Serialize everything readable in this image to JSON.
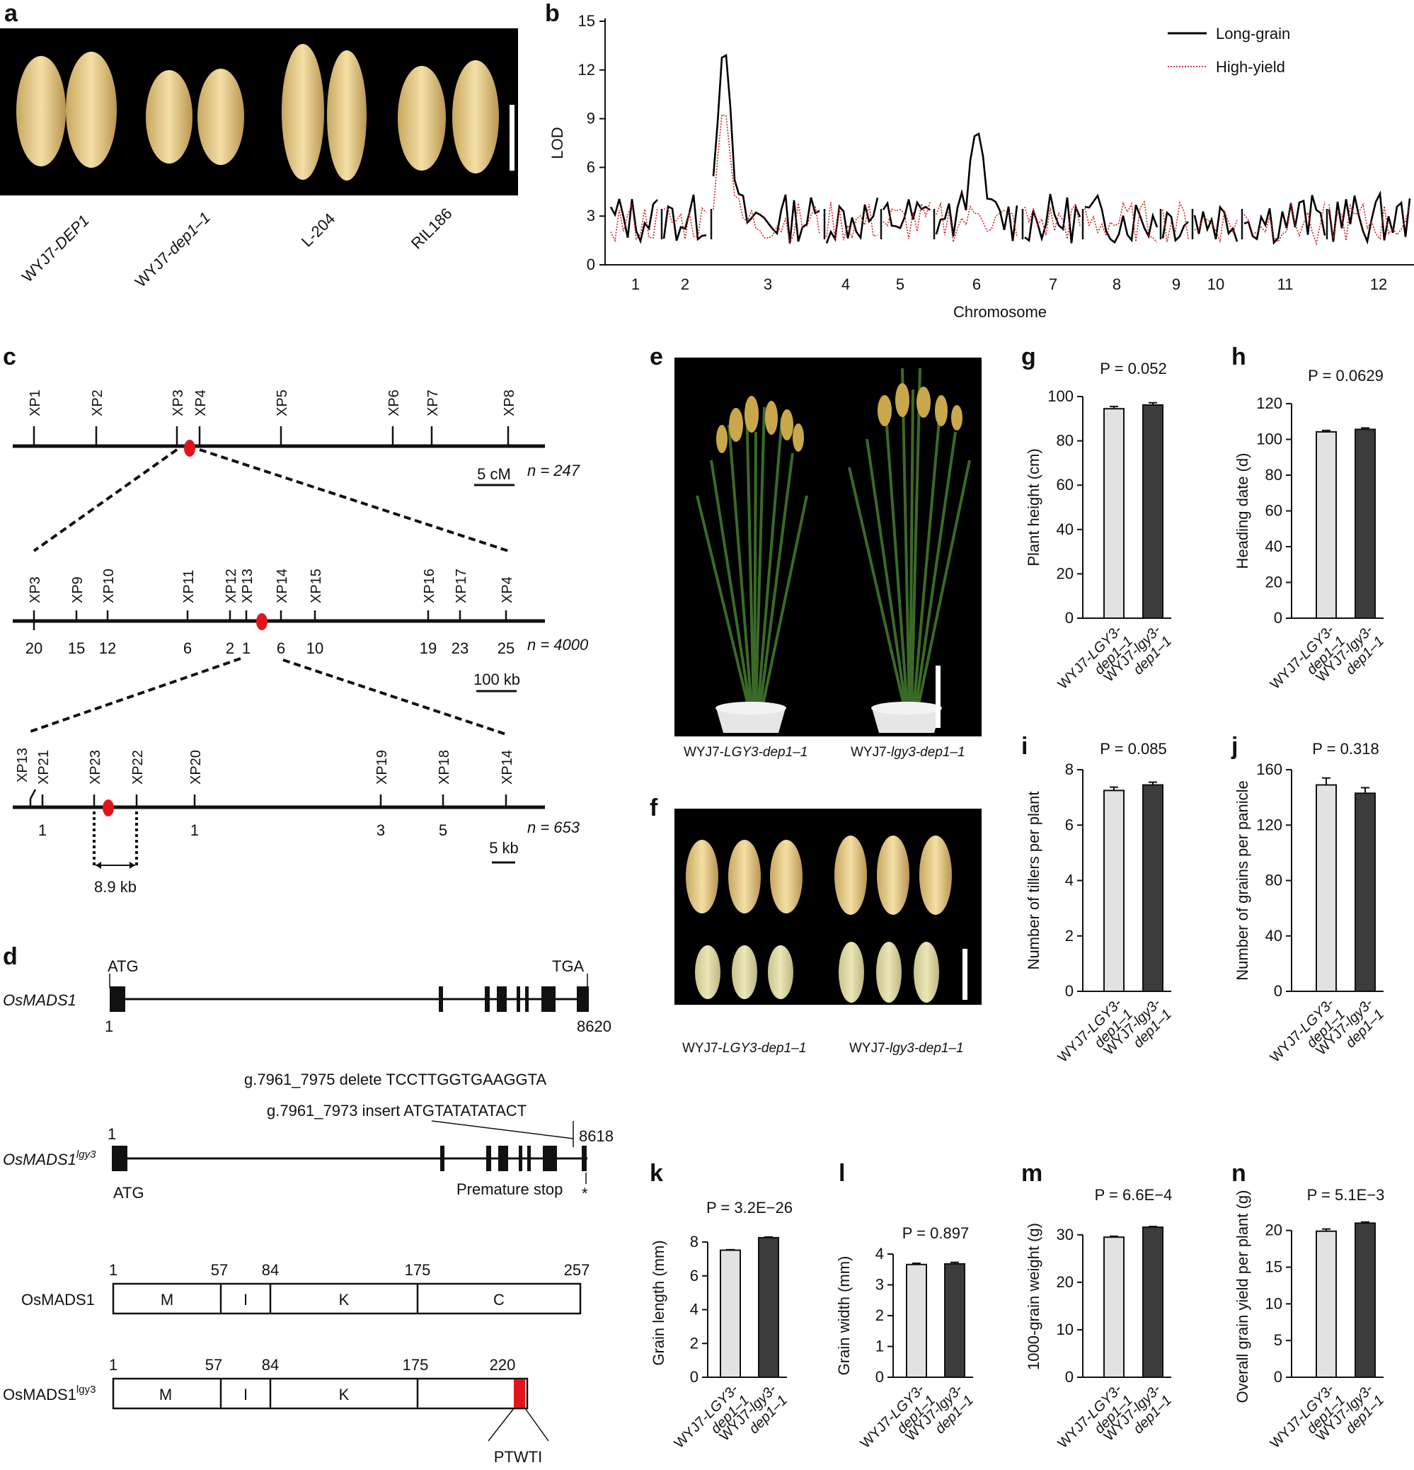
{
  "panel_labels": [
    "a",
    "b",
    "c",
    "d",
    "e",
    "f",
    "g",
    "h",
    "i",
    "j",
    "k",
    "l",
    "m",
    "n"
  ],
  "panel_a": {
    "labels": [
      "WYJ7-DEP1",
      "WYJ7-dep1–1",
      "L-204",
      "RIL186"
    ]
  },
  "chart_data": [
    {
      "id": "b",
      "type": "line",
      "ylabel": "LOD",
      "xlabel": "Chromosome",
      "ylim": [
        0,
        15
      ],
      "yticks": [
        0,
        3,
        6,
        9,
        12,
        15
      ],
      "chromosomes": [
        "1",
        "2",
        "3",
        "4",
        "5",
        "6",
        "7",
        "8",
        "9",
        "10",
        "11",
        "12"
      ],
      "legend_position": "top-right",
      "series": [
        {
          "name": "Long-grain",
          "color": "#000000",
          "style": "solid",
          "peaks": [
            {
              "chromosome": "3",
              "value": 13.4
            },
            {
              "chromosome": "6",
              "value": 8.3
            }
          ],
          "baseline_range": [
            1,
            4.5
          ]
        },
        {
          "name": "High-yield",
          "color": "#cc2222",
          "style": "dotted",
          "peaks": [
            {
              "chromosome": "3",
              "value": 9.6
            },
            {
              "chromosome": "6",
              "value": 3.2
            }
          ],
          "baseline_range": [
            1,
            4
          ]
        }
      ]
    },
    {
      "id": "g",
      "type": "bar",
      "p": "P = 0.052",
      "ylabel": "Plant height (cm)",
      "ylim": [
        0,
        100
      ],
      "yticks": [
        0,
        20,
        40,
        60,
        80,
        100
      ],
      "categories": [
        "WYJ7-LGY3-dep1–1",
        "WYJ7-lgy3-dep1–1"
      ],
      "values": [
        94.5,
        96.2
      ],
      "errors": [
        1.0,
        1.0
      ]
    },
    {
      "id": "h",
      "type": "bar",
      "p": "P = 0.0629",
      "ylabel": "Heading date (d)",
      "ylim": [
        0,
        120
      ],
      "yticks": [
        0,
        20,
        40,
        60,
        80,
        100,
        120
      ],
      "categories": [
        "WYJ7-LGY3-dep1–1",
        "WYJ7-lgy3-dep1–1"
      ],
      "values": [
        104.2,
        105.6
      ],
      "errors": [
        0.8,
        0.8
      ]
    },
    {
      "id": "i",
      "type": "bar",
      "p": "P = 0.085",
      "ylabel": "Number of tillers per plant",
      "ylim": [
        0,
        8
      ],
      "yticks": [
        0,
        2,
        4,
        6,
        8
      ],
      "categories": [
        "WYJ7-LGY3-dep1–1",
        "WYJ7-lgy3-dep1–1"
      ],
      "values": [
        7.25,
        7.45
      ],
      "errors": [
        0.12,
        0.1
      ]
    },
    {
      "id": "j",
      "type": "bar",
      "p": "P = 0.318",
      "ylabel": "Number of grains per panicle",
      "ylim": [
        0,
        160
      ],
      "yticks": [
        0,
        40,
        80,
        120,
        160
      ],
      "categories": [
        "WYJ7-LGY3-dep1–1",
        "WYJ7-lgy3-dep1–1"
      ],
      "values": [
        149,
        143
      ],
      "errors": [
        5,
        4
      ]
    },
    {
      "id": "k",
      "type": "bar",
      "p": "P = 3.2E−26",
      "ylabel": "Grain length (mm)",
      "ylim": [
        0,
        8.8
      ],
      "yticks": [
        0,
        2,
        4,
        6,
        8
      ],
      "categories": [
        "WYJ7-LGY3-dep1–1",
        "WYJ7-lgy3-dep1–1"
      ],
      "values": [
        7.52,
        8.26
      ],
      "errors": [
        0.03,
        0.04
      ]
    },
    {
      "id": "l",
      "type": "bar",
      "p": "P = 0.897",
      "ylabel": "Grain width (mm)",
      "ylim": [
        0,
        4
      ],
      "yticks": [
        0,
        1,
        2,
        3,
        4
      ],
      "categories": [
        "WYJ7-LGY3-dep1–1",
        "WYJ7-lgy3-dep1–1"
      ],
      "values": [
        3.66,
        3.68
      ],
      "errors": [
        0.04,
        0.05
      ]
    },
    {
      "id": "m",
      "type": "bar",
      "p": "P = 6.6E−4",
      "ylabel": "1000-grain weight (g)",
      "ylim": [
        0,
        34
      ],
      "yticks": [
        0,
        10,
        20,
        30
      ],
      "categories": [
        "WYJ7-LGY3-dep1–1",
        "WYJ7-lgy3-dep1–1"
      ],
      "values": [
        29.5,
        31.6
      ],
      "errors": [
        0.2,
        0.15
      ]
    },
    {
      "id": "n",
      "type": "bar",
      "p": "P = 5.1E−3",
      "ylabel": "Overall grain yield per plant (g)",
      "ylim": [
        0,
        22
      ],
      "yticks": [
        0,
        5,
        10,
        15,
        20
      ],
      "categories": [
        "WYJ7-LGY3-dep1–1",
        "WYJ7-lgy3-dep1–1"
      ],
      "values": [
        19.9,
        21.0
      ],
      "errors": [
        0.3,
        0.15
      ]
    }
  ],
  "panel_c": {
    "row1": {
      "markers": [
        "XP1",
        "XP2",
        "XP3",
        "XP4",
        "XP5",
        "XP6",
        "XP7",
        "XP8"
      ],
      "scale": "5 cM",
      "n": "n = 247"
    },
    "row2": {
      "markers": [
        "XP3",
        "XP9",
        "XP10",
        "XP11",
        "XP12",
        "XP13",
        "XP14",
        "XP15",
        "XP16",
        "XP17",
        "XP4"
      ],
      "counts": [
        "20",
        "15",
        "12",
        "6",
        "2",
        "1",
        "6",
        "10",
        "19",
        "23",
        "25"
      ],
      "scale": "100 kb",
      "n": "n = 4000"
    },
    "row3": {
      "markers": [
        "XP13",
        "XP21",
        "XP23",
        "XP22",
        "XP20",
        "XP19",
        "XP18",
        "XP14"
      ],
      "counts": [
        "1",
        "1",
        "3",
        "5"
      ],
      "scale": "5 kb",
      "n": "n = 653",
      "interval": "8.9 kb"
    }
  },
  "panel_d": {
    "gene1": {
      "name": "OsMADS1",
      "start_codon": "ATG",
      "stop_codon": "TGA",
      "start": "1",
      "end": "8620"
    },
    "gene2": {
      "name": "OsMADS1",
      "superscript": "lgy3",
      "start": "1",
      "end": "8618",
      "start_codon": "ATG",
      "deletion": "g.7961_7975 delete",
      "deletion_seq": "TCCTTGGTGAAGGTA",
      "insertion": "g.7961_7973 insert",
      "insertion_seq": "ATGTATATATACT",
      "premature": "Premature stop",
      "star": "*"
    },
    "protein1": {
      "name": "OsMADS1",
      "positions": [
        "1",
        "57",
        "84",
        "175",
        "257"
      ],
      "domains": [
        "M",
        "I",
        "K",
        "C"
      ]
    },
    "protein2": {
      "name": "OsMADS1",
      "superscript": "lgy3",
      "positions": [
        "1",
        "57",
        "84",
        "175",
        "220"
      ],
      "domains": [
        "M",
        "I",
        "K"
      ],
      "tail": "PTWTI"
    }
  },
  "panel_e": {
    "labels": [
      "WYJ7-LGY3-dep1–1",
      "WYJ7-lgy3-dep1–1"
    ]
  },
  "panel_f": {
    "labels": [
      "WYJ7-LGY3-dep1–1",
      "WYJ7-lgy3-dep1–1"
    ]
  }
}
